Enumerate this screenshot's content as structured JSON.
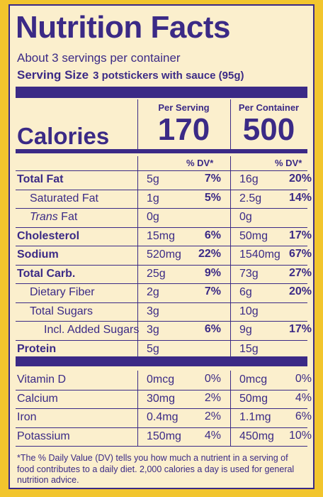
{
  "title": "Nutrition Facts",
  "servings_per_container": "About 3 servings per container",
  "serving_size_label": "Serving Size",
  "serving_size_value": "3 potstickers with sauce (95g)",
  "column_headers": {
    "per_serving": "Per Serving",
    "per_container": "Per Container"
  },
  "calories": {
    "label": "Calories",
    "per_serving": "170",
    "per_container": "500"
  },
  "dv_header": "% DV*",
  "nutrients": [
    {
      "name": "Total Fat",
      "style": "bold",
      "serving_amount": "5g",
      "serving_dv": "7%",
      "container_amount": "16g",
      "container_dv": "20%"
    },
    {
      "name": "Saturated Fat",
      "style": "indent",
      "serving_amount": "1g",
      "serving_dv": "5%",
      "container_amount": "2.5g",
      "container_dv": "14%"
    },
    {
      "name_italic": "Trans",
      "name": "Fat",
      "style": "indent-italic",
      "serving_amount": "0g",
      "serving_dv": "",
      "container_amount": "0g",
      "container_dv": ""
    },
    {
      "name": "Cholesterol",
      "style": "bold",
      "serving_amount": "15mg",
      "serving_dv": "6%",
      "container_amount": "50mg",
      "container_dv": "17%"
    },
    {
      "name": "Sodium",
      "style": "bold",
      "serving_amount": "520mg",
      "serving_dv": "22%",
      "container_amount": "1540mg",
      "container_dv": "67%"
    },
    {
      "name": "Total Carb.",
      "style": "bold",
      "serving_amount": "25g",
      "serving_dv": "9%",
      "container_amount": "73g",
      "container_dv": "27%"
    },
    {
      "name": "Dietary Fiber",
      "style": "indent",
      "serving_amount": "2g",
      "serving_dv": "7%",
      "container_amount": "6g",
      "container_dv": "20%"
    },
    {
      "name": "Total Sugars",
      "style": "indent",
      "serving_amount": "3g",
      "serving_dv": "",
      "container_amount": "10g",
      "container_dv": ""
    },
    {
      "name": "Incl. Added Sugars",
      "style": "indent2",
      "serving_amount": "3g",
      "serving_dv": "6%",
      "container_amount": "9g",
      "container_dv": "17%"
    },
    {
      "name": "Protein",
      "style": "bold",
      "serving_amount": "5g",
      "serving_dv": "",
      "container_amount": "15g",
      "container_dv": ""
    }
  ],
  "vitamins": [
    {
      "name": "Vitamin D",
      "serving_amount": "0mcg",
      "serving_dv": "0%",
      "container_amount": "0mcg",
      "container_dv": "0%"
    },
    {
      "name": "Calcium",
      "serving_amount": "30mg",
      "serving_dv": "2%",
      "container_amount": "50mg",
      "container_dv": "4%"
    },
    {
      "name": "Iron",
      "serving_amount": "0.4mg",
      "serving_dv": "2%",
      "container_amount": "1.1mg",
      "container_dv": "6%"
    },
    {
      "name": "Potassium",
      "serving_amount": "150mg",
      "serving_dv": "4%",
      "container_amount": "450mg",
      "container_dv": "10%"
    }
  ],
  "footnote": "*The % Daily Value (DV) tells you how much a nutrient in a serving of food contributes to a daily diet. 2,000 calories a day is used for general nutrition advice.",
  "colors": {
    "ink": "#3b2a86",
    "panel": "#fbefcd",
    "package": "#f2c52d"
  }
}
